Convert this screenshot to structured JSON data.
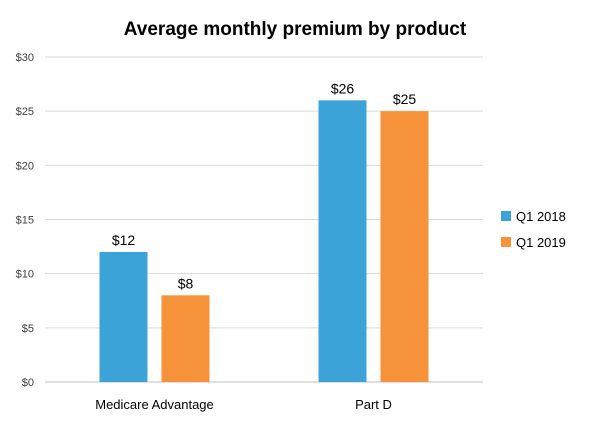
{
  "chart_data": {
    "type": "bar",
    "title": "Average monthly premium by product",
    "categories": [
      "Medicare Advantage",
      "Part D"
    ],
    "series": [
      {
        "name": "Q1 2018",
        "values": [
          12,
          26
        ],
        "labels": [
          "$12",
          "$26"
        ],
        "color": "#3ba3d8"
      },
      {
        "name": "Q1 2019",
        "values": [
          8,
          25
        ],
        "labels": [
          "$8",
          "$25"
        ],
        "color": "#f5923a"
      }
    ],
    "y_ticks": [
      {
        "value": 0,
        "label": "$0"
      },
      {
        "value": 5,
        "label": "$5"
      },
      {
        "value": 10,
        "label": "$10"
      },
      {
        "value": 15,
        "label": "$15"
      },
      {
        "value": 20,
        "label": "$20"
      },
      {
        "value": 25,
        "label": "$25"
      },
      {
        "value": 30,
        "label": "$30"
      }
    ],
    "ylim": [
      0,
      30
    ],
    "grid": true,
    "legend_position": "right"
  }
}
